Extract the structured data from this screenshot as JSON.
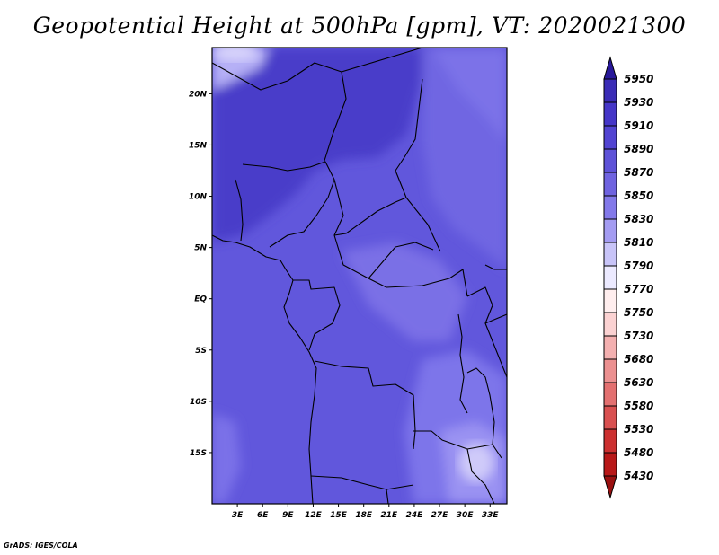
{
  "title": "Geopotential Height at 500hPa [gpm], VT: 2020021300",
  "footer": "GrADS: IGES/COLA",
  "map": {
    "lat_labels": [
      "20N",
      "15N",
      "10N",
      "5N",
      "EQ",
      "5S",
      "10S",
      "15S"
    ],
    "lat_values": [
      20,
      15,
      10,
      5,
      0,
      -5,
      -10,
      -15
    ],
    "lon_labels": [
      "3E",
      "6E",
      "9E",
      "12E",
      "15E",
      "18E",
      "21E",
      "24E",
      "27E",
      "30E",
      "33E"
    ],
    "lon_values": [
      3,
      6,
      9,
      12,
      15,
      18,
      21,
      24,
      27,
      30,
      33
    ],
    "lon_range": [
      0,
      35
    ],
    "lat_range": [
      -20,
      24.5
    ]
  },
  "colorbar": {
    "labels": [
      "5950",
      "5930",
      "5910",
      "5890",
      "5870",
      "5850",
      "5830",
      "5810",
      "5790",
      "5770",
      "5750",
      "5730",
      "5680",
      "5630",
      "5580",
      "5530",
      "5480",
      "5430"
    ],
    "colors": [
      "#28189a",
      "#3a2cb6",
      "#4536c8",
      "#5244d2",
      "#5e52d8",
      "#6f63e0",
      "#8379ea",
      "#a49cf2",
      "#c8c4f8",
      "#eceaff",
      "#ffeeee",
      "#fbd2d2",
      "#f4b0b0",
      "#ec9090",
      "#e37070",
      "#d95050",
      "#cc3030",
      "#b81818",
      "#9a1010"
    ]
  }
}
